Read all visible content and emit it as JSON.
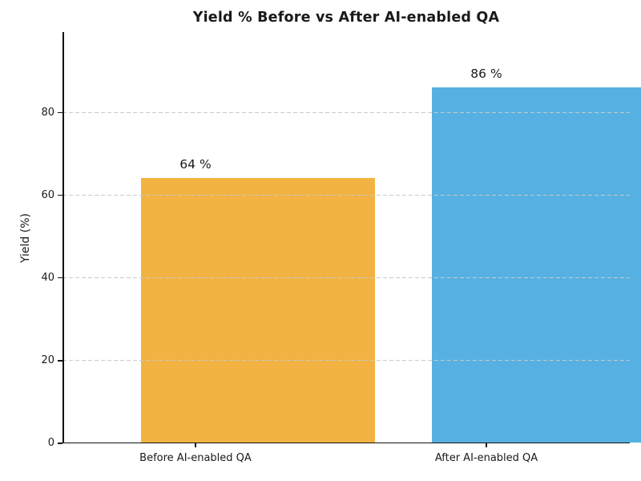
{
  "figure": {
    "background": "#ffffff",
    "text_color": "#1a1a1a"
  },
  "chart_data": {
    "type": "bar",
    "title": "Yield % Before vs After AI-enabled QA",
    "categories": [
      "Before AI-enabled QA",
      "After AI-enabled QA"
    ],
    "values": [
      64,
      86
    ],
    "bar_value_labels": [
      "64 %",
      "86 %"
    ],
    "bar_colors": [
      "#F2B342",
      "#56B1E2"
    ],
    "xlabel": "",
    "ylabel": "Yield (%)",
    "ylim": [
      0,
      99.5
    ],
    "yticks": [
      0,
      20,
      40,
      60,
      80
    ],
    "grid": {
      "axis": "y",
      "style": "dashed",
      "color": "#c9c9c9"
    },
    "legend": "none",
    "spines_visible": [
      "left",
      "bottom"
    ]
  }
}
